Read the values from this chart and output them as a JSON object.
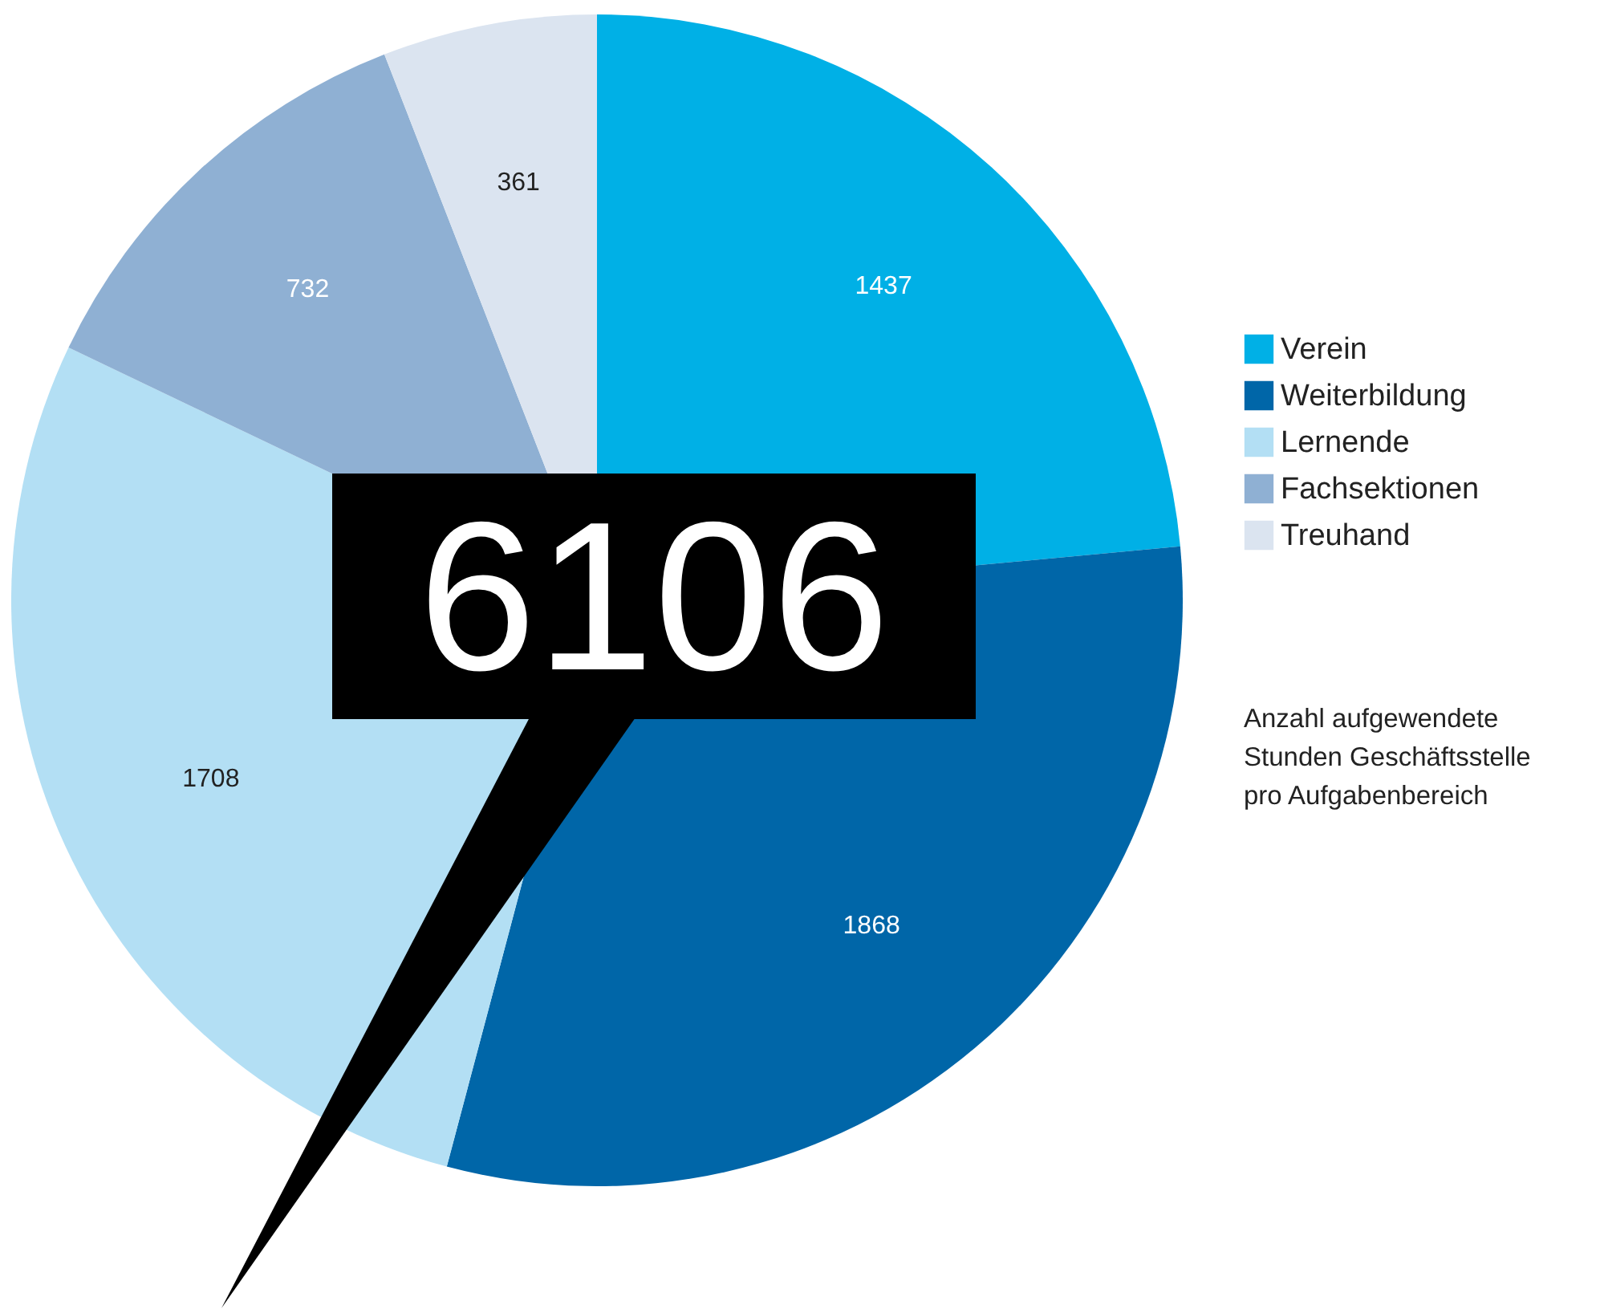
{
  "chart_data": {
    "type": "pie",
    "categories": [
      "Verein",
      "Weiterbildung",
      "Lernende",
      "Fachsektionen",
      "Treuhand"
    ],
    "values": [
      1437,
      1868,
      1708,
      732,
      361
    ],
    "colors": [
      "#00b0e6",
      "#0066a8",
      "#b3dff4",
      "#8fb0d3",
      "#dbe4f0"
    ],
    "data_labels": true,
    "legend": "right",
    "subtitle": "Anzahl aufgewendete Stunden Geschäftsstelle pro Aufgabenbereich",
    "annotations": [
      "6106"
    ]
  }
}
